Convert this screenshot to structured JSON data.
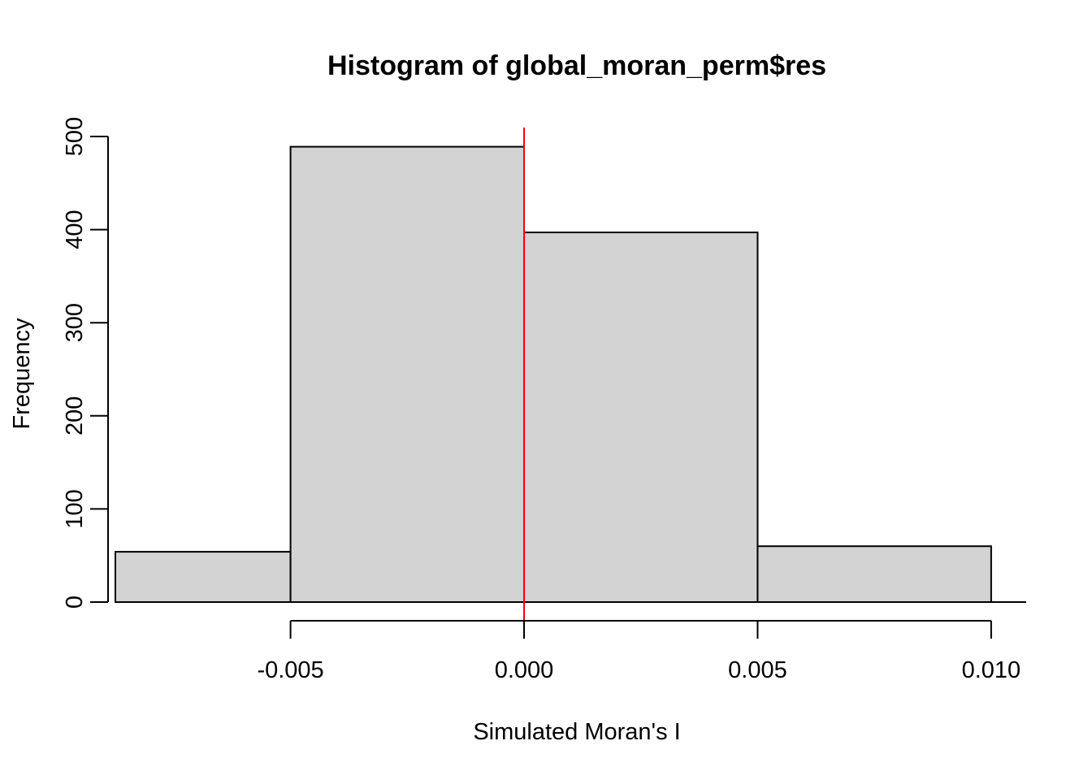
{
  "chart_data": {
    "type": "bar",
    "title": "Histogram of global_moran_perm$res",
    "xlabel": "Simulated Moran's I",
    "ylabel": "Frequency",
    "bins": [
      {
        "start": -0.00875,
        "end": -0.005,
        "count": 54
      },
      {
        "start": -0.005,
        "end": 0.0,
        "count": 489
      },
      {
        "start": 0.0,
        "end": 0.005,
        "count": 397
      },
      {
        "start": 0.005,
        "end": 0.01,
        "count": 60
      }
    ],
    "xlim": [
      -0.00875,
      0.01075
    ],
    "ylim": [
      0,
      500
    ],
    "xticks": [
      -0.005,
      0.0,
      0.005,
      0.01
    ],
    "xtick_labels": [
      "-0.005",
      "0.000",
      "0.005",
      "0.010"
    ],
    "yticks": [
      0,
      100,
      200,
      300,
      400,
      500
    ],
    "ytick_labels": [
      "0",
      "100",
      "200",
      "300",
      "400",
      "500"
    ],
    "reference_line": {
      "x": 0.0,
      "color": "#ff0000"
    },
    "bar_fill": "#d3d3d3",
    "grid": false,
    "legend": "none"
  }
}
